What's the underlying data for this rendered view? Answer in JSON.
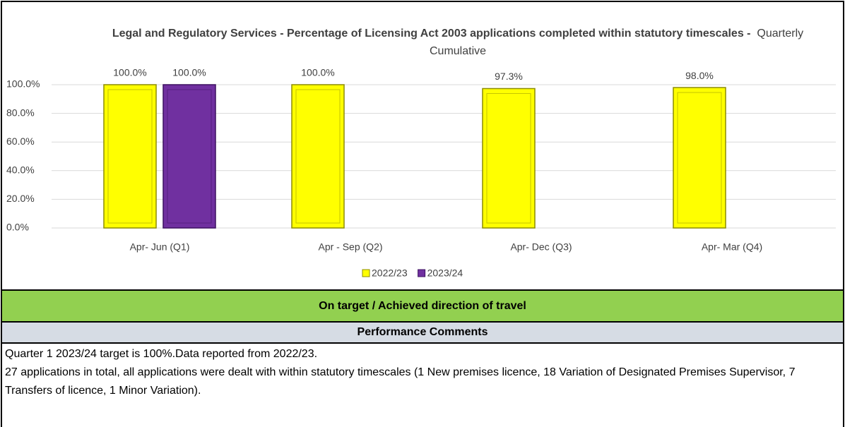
{
  "chart_data": {
    "type": "bar",
    "title": "Legal and Regulatory Services - Percentage of Licensing Act 2003 applications completed within statutory timescales -",
    "subtitle": "Quarterly Cumulative",
    "categories": [
      "Apr- Jun  (Q1)",
      "Apr - Sep  (Q2)",
      "Apr- Dec  (Q3)",
      "Apr- Mar  (Q4)"
    ],
    "series": [
      {
        "name": "2022/23",
        "color": "#ffff00",
        "values": [
          100,
          100,
          97.3,
          98
        ],
        "value_labels": [
          "100.0%",
          "100.0%",
          "97.3%",
          "98.0%"
        ]
      },
      {
        "name": "2023/24",
        "color": "#7030a0",
        "values": [
          100,
          null,
          null,
          null
        ],
        "value_labels": [
          "100.0%",
          null,
          null,
          null
        ]
      }
    ],
    "ylim": [
      0,
      100
    ],
    "yticks": [
      {
        "value": 0,
        "label": "0.0%"
      },
      {
        "value": 20,
        "label": "20.0%"
      },
      {
        "value": 40,
        "label": "40.0%"
      },
      {
        "value": 60,
        "label": "60.0%"
      },
      {
        "value": 80,
        "label": "80.0%"
      },
      {
        "value": 100,
        "label": "100.0%"
      }
    ],
    "grid": true,
    "legend": "bottom"
  },
  "status": "On target / Achieved direction of travel",
  "comments_heading": "Performance Comments",
  "comments": [
    "Quarter 1 2023/24 target is 100%.Data reported from 2022/23.",
    "27 applications in total, all applications were dealt with within statutory timescales (1 New premises licence, 18 Variation of Designated Premises Supervisor, 7 Transfers of licence, 1 Minor Variation)."
  ]
}
